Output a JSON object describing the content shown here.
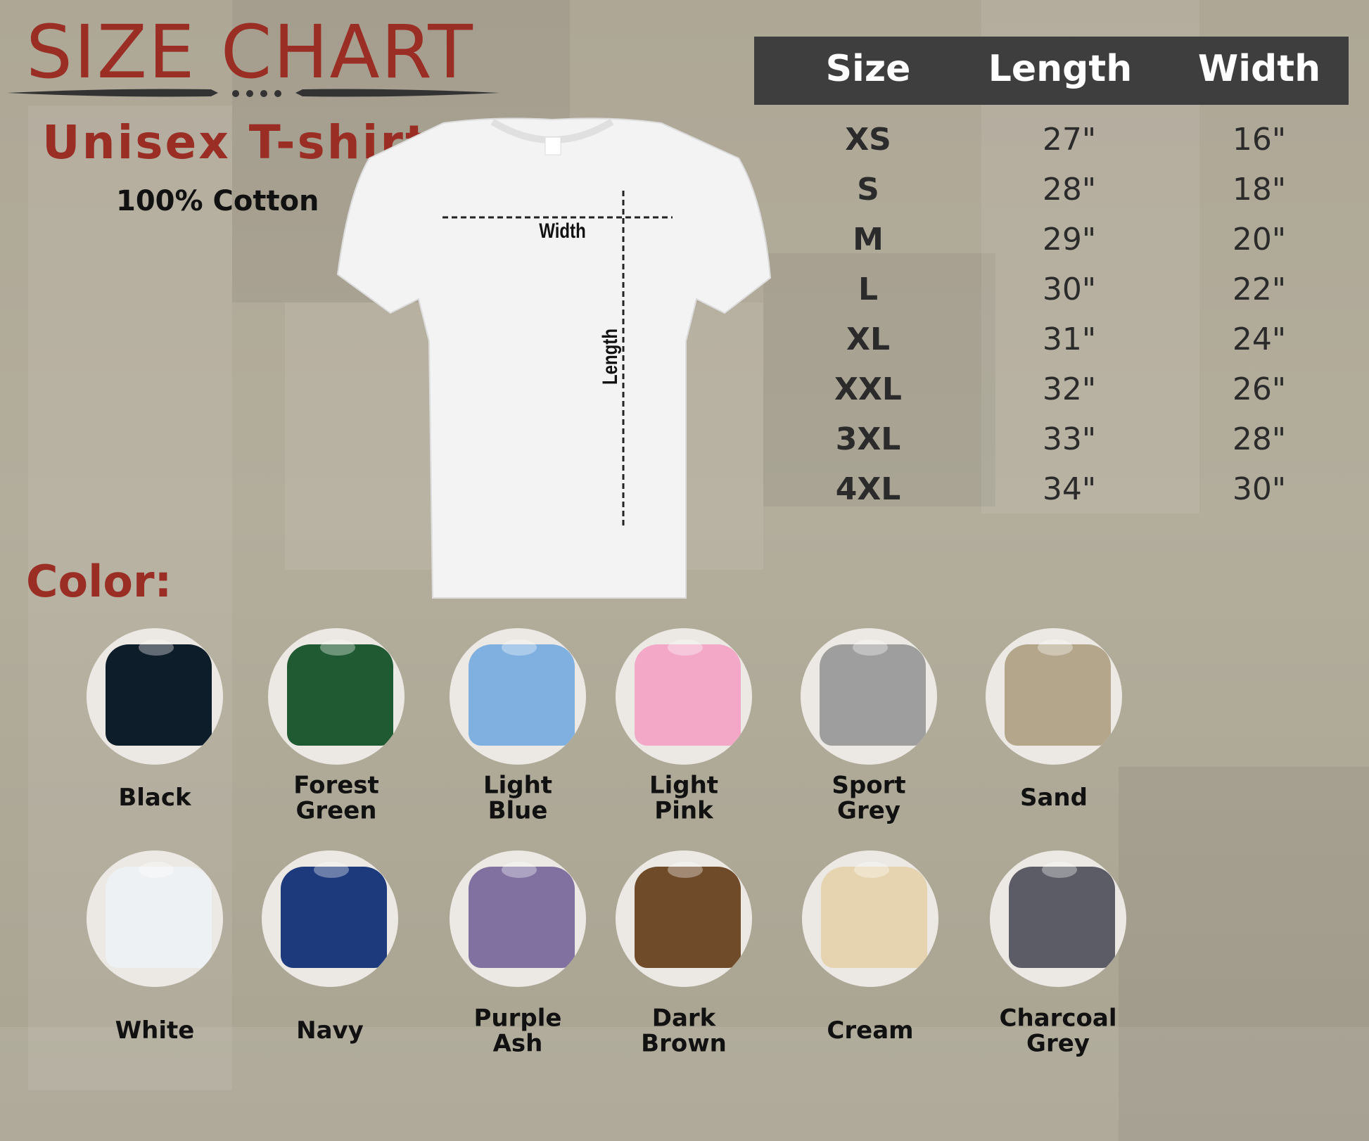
{
  "header": {
    "title": "SIZE CHART",
    "subtitle": "Unisex T-shirt",
    "material": "100% Cotton"
  },
  "diagram": {
    "width_label": "Width",
    "length_label": "Length"
  },
  "table": {
    "columns": [
      "Size",
      "Length",
      "Width"
    ],
    "rows": [
      [
        "XS",
        "27\"",
        "16\""
      ],
      [
        "S",
        "28\"",
        "18\""
      ],
      [
        "M",
        "29\"",
        "20\""
      ],
      [
        "L",
        "30\"",
        "22\""
      ],
      [
        "XL",
        "31\"",
        "24\""
      ],
      [
        "XXL",
        "32\"",
        "26\""
      ],
      [
        "3XL",
        "33\"",
        "28\""
      ],
      [
        "4XL",
        "34\"",
        "30\""
      ]
    ]
  },
  "colors": {
    "title": "Color:",
    "items": [
      {
        "name": "Black",
        "lines": [
          "Black"
        ],
        "hex": "#0e1d2a"
      },
      {
        "name": "Forest Green",
        "lines": [
          "Forest",
          "Green"
        ],
        "hex": "#1f5a32"
      },
      {
        "name": "Light Blue",
        "lines": [
          "Light",
          "Blue"
        ],
        "hex": "#7fb0e0"
      },
      {
        "name": "Light Pink",
        "lines": [
          "Light",
          "Pink"
        ],
        "hex": "#f2a8c6"
      },
      {
        "name": "Sport Grey",
        "lines": [
          "Sport",
          "Grey"
        ],
        "hex": "#9e9e9e"
      },
      {
        "name": "Sand",
        "lines": [
          "Sand"
        ],
        "hex": "#b4a68b"
      },
      {
        "name": "White",
        "lines": [
          "White"
        ],
        "hex": "#eef1f3"
      },
      {
        "name": "Navy",
        "lines": [
          "Navy"
        ],
        "hex": "#1d3a7d"
      },
      {
        "name": "Purple Ash",
        "lines": [
          "Purple",
          "Ash"
        ],
        "hex": "#8071a0"
      },
      {
        "name": "Dark Brown",
        "lines": [
          "Dark",
          "Brown"
        ],
        "hex": "#704b2a"
      },
      {
        "name": "Cream",
        "lines": [
          "Cream"
        ],
        "hex": "#e6d4b0"
      },
      {
        "name": "Charcoal Grey",
        "lines": [
          "Charcoal",
          "Grey"
        ],
        "hex": "#5b5c66"
      }
    ]
  },
  "theme": {
    "accent": "#9a2e25",
    "header_bg": "#3e3e3e"
  }
}
